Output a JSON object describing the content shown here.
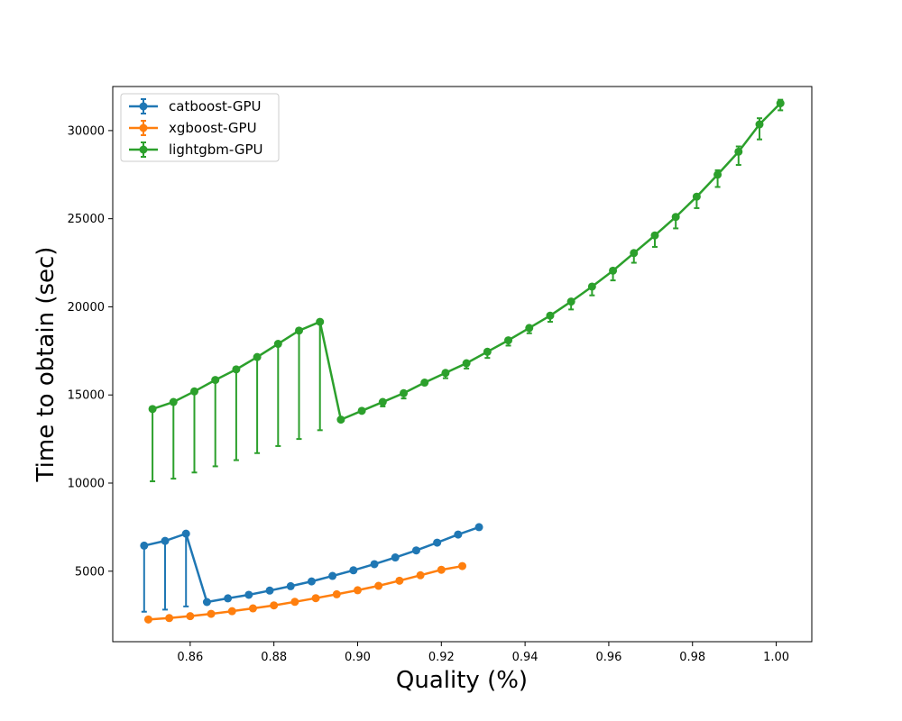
{
  "chart_data": {
    "type": "line",
    "xlabel": "Quality (%)",
    "ylabel": "Time to obtain (sec)",
    "xlim": [
      0.8415,
      1.0085
    ],
    "ylim": [
      1000,
      32500
    ],
    "x_ticks": [
      0.86,
      0.88,
      0.9,
      0.92,
      0.94,
      0.96,
      0.98,
      1.0
    ],
    "x_tick_labels": [
      "0.86",
      "0.88",
      "0.90",
      "0.92",
      "0.94",
      "0.96",
      "0.98",
      "1.00"
    ],
    "y_ticks": [
      5000,
      10000,
      15000,
      20000,
      25000,
      30000
    ],
    "y_tick_labels": [
      "5000",
      "10000",
      "15000",
      "20000",
      "25000",
      "30000"
    ],
    "grid": false,
    "legend_position": "top-left",
    "series": [
      {
        "name": "catboost-GPU",
        "color": "#1f77b4",
        "x": [
          0.849,
          0.854,
          0.859,
          0.864,
          0.869,
          0.874,
          0.879,
          0.884,
          0.889,
          0.894,
          0.899,
          0.904,
          0.909,
          0.914,
          0.919,
          0.924,
          0.929
        ],
        "y": [
          6450,
          6720,
          7130,
          3250,
          3460,
          3660,
          3900,
          4150,
          4420,
          4730,
          5050,
          5400,
          5780,
          6180,
          6620,
          7080,
          7500
        ],
        "err_low": [
          3750,
          3900,
          4130,
          0,
          0,
          0,
          0,
          0,
          0,
          0,
          0,
          0,
          0,
          0,
          0,
          0,
          0
        ],
        "err_high": [
          0,
          0,
          0,
          0,
          0,
          0,
          0,
          0,
          0,
          0,
          0,
          0,
          0,
          0,
          0,
          0,
          0
        ]
      },
      {
        "name": "xgboost-GPU",
        "color": "#ff7f0e",
        "x": [
          0.85,
          0.855,
          0.86,
          0.865,
          0.87,
          0.875,
          0.88,
          0.885,
          0.89,
          0.895,
          0.9,
          0.905,
          0.91,
          0.915,
          0.92,
          0.925
        ],
        "y": [
          2260,
          2340,
          2450,
          2580,
          2730,
          2890,
          3060,
          3260,
          3470,
          3690,
          3920,
          4170,
          4460,
          4770,
          5080,
          5290
        ],
        "err_low": [
          0,
          0,
          0,
          0,
          0,
          0,
          0,
          0,
          0,
          0,
          0,
          0,
          0,
          0,
          0,
          0
        ],
        "err_high": [
          0,
          0,
          0,
          0,
          0,
          0,
          0,
          0,
          0,
          0,
          0,
          0,
          0,
          0,
          0,
          0
        ]
      },
      {
        "name": "lightgbm-GPU",
        "color": "#2ca02c",
        "x": [
          0.851,
          0.856,
          0.861,
          0.866,
          0.871,
          0.876,
          0.881,
          0.886,
          0.891,
          0.896,
          0.901,
          0.906,
          0.911,
          0.916,
          0.921,
          0.926,
          0.931,
          0.936,
          0.941,
          0.946,
          0.951,
          0.956,
          0.961,
          0.966,
          0.971,
          0.976,
          0.981,
          0.986,
          0.991,
          0.996,
          1.001
        ],
        "y": [
          14200,
          14600,
          15200,
          15850,
          16450,
          17150,
          17900,
          18650,
          19150,
          13600,
          14100,
          14600,
          15100,
          15700,
          16250,
          16800,
          17450,
          18100,
          18800,
          19500,
          20300,
          21150,
          22050,
          23050,
          24050,
          25100,
          26250,
          27500,
          28800,
          30350,
          31550
        ],
        "err_low": [
          4100,
          4350,
          4600,
          4900,
          5150,
          5450,
          5800,
          6150,
          6150,
          0,
          0,
          250,
          300,
          0,
          300,
          300,
          350,
          300,
          300,
          350,
          450,
          500,
          550,
          550,
          650,
          650,
          650,
          700,
          750,
          850,
          400
        ],
        "err_high": [
          0,
          0,
          0,
          0,
          0,
          0,
          0,
          0,
          0,
          0,
          0,
          0,
          0,
          0,
          0,
          0,
          0,
          0,
          0,
          0,
          0,
          0,
          0,
          0,
          0,
          0,
          0,
          250,
          300,
          350,
          200
        ]
      }
    ]
  }
}
